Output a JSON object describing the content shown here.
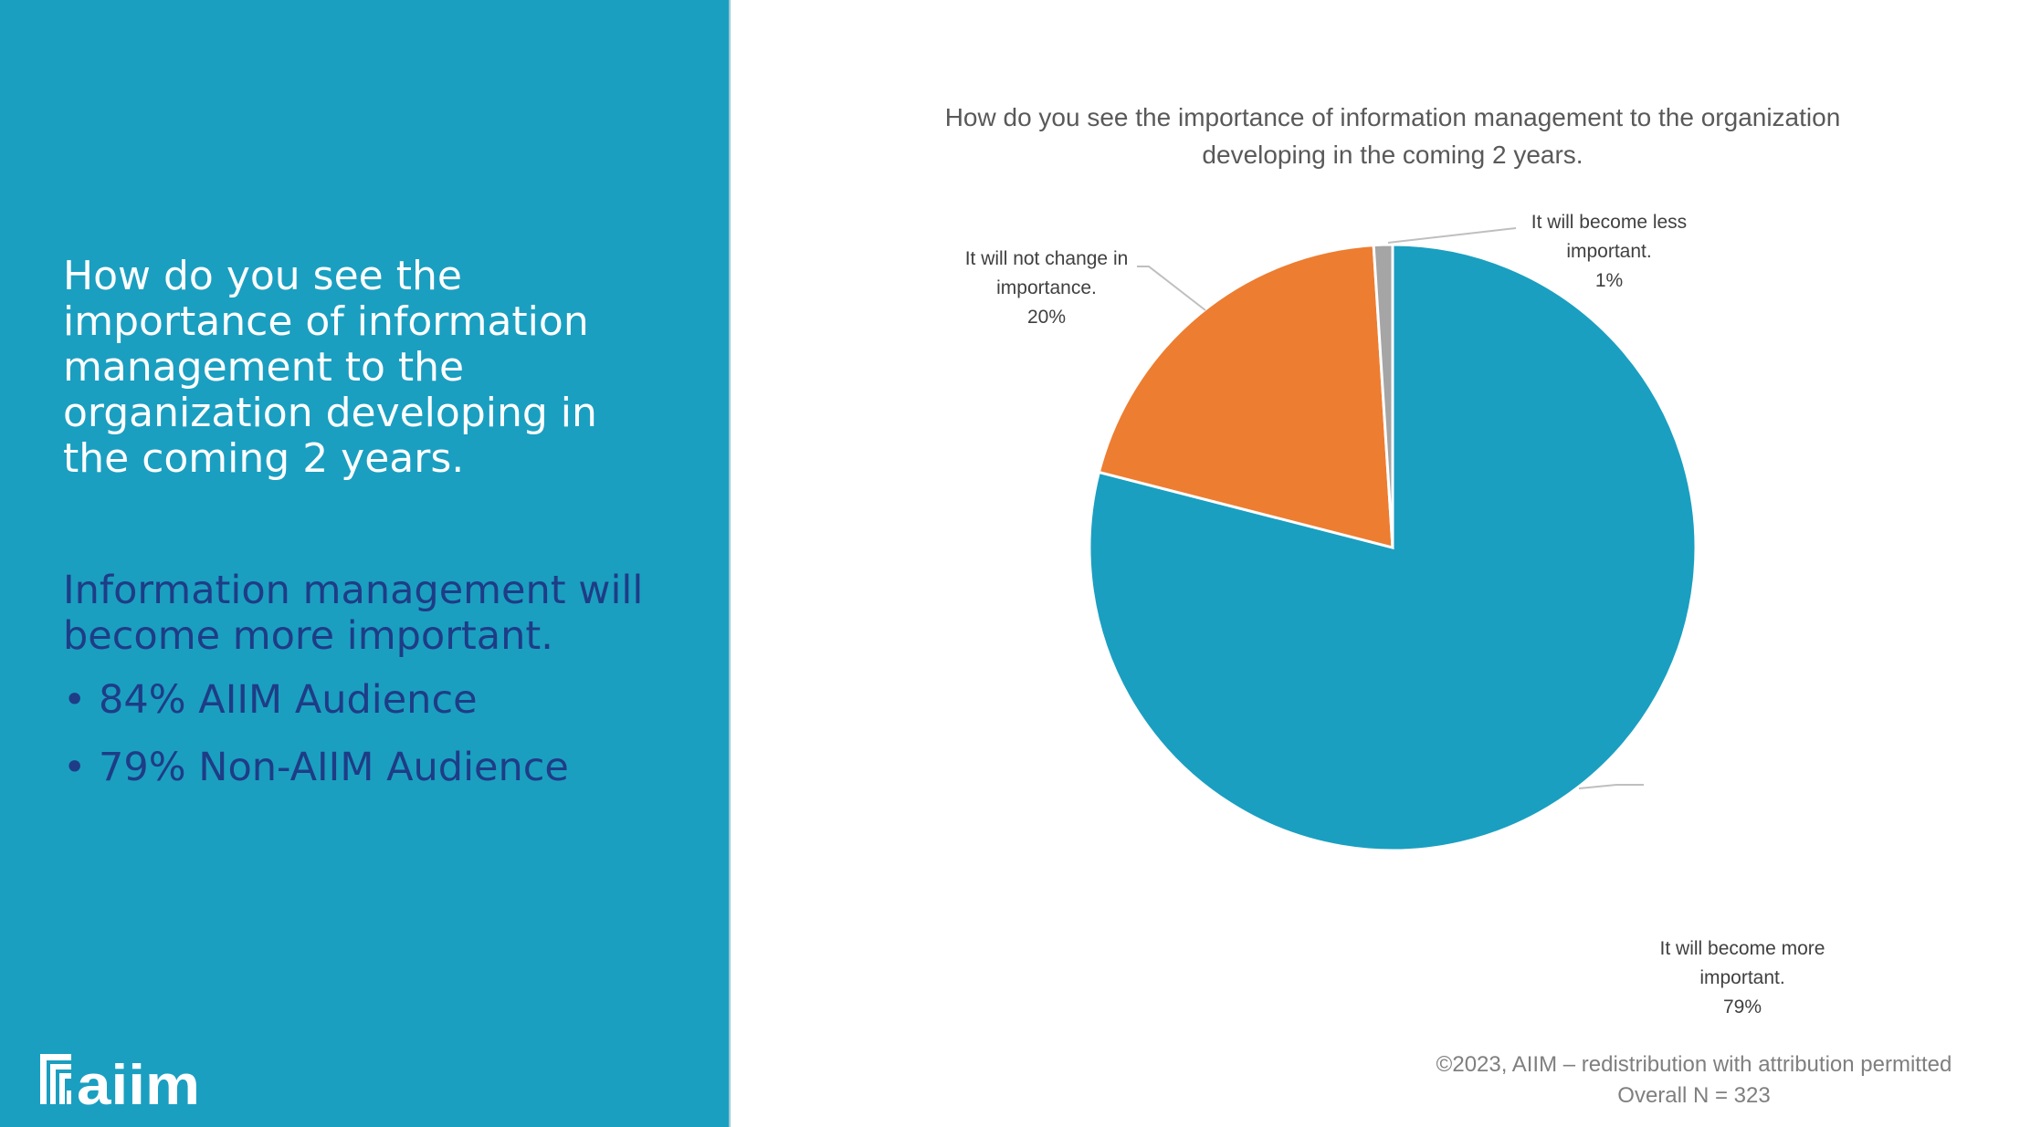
{
  "left_panel": {
    "title": "How do you see the importance of information management to the organization developing in the coming 2 years.",
    "subtitle": "Information management will become more important.",
    "bullets": [
      "• 84% AIIM Audience",
      "• 79% Non-AIIM Audience"
    ],
    "logo_text": "aiim",
    "background": "#1a9fc1"
  },
  "chart_data": {
    "type": "pie",
    "title": "How do you see the importance of information management to the organization developing in the coming 2 years.",
    "slices": [
      {
        "label": "It will become more important.",
        "value": 79,
        "value_label": "79%",
        "color": "#1a9fc1"
      },
      {
        "label": "It will not change in importance.",
        "value": 20,
        "value_label": "20%",
        "color": "#ed7d31"
      },
      {
        "label": "It will become less important.",
        "value": 1,
        "value_label": "1%",
        "color": "#a5a5a5"
      }
    ]
  },
  "footer": {
    "copyright": "©2023, AIIM – redistribution with attribution permitted",
    "sample": "Overall N = 323"
  }
}
